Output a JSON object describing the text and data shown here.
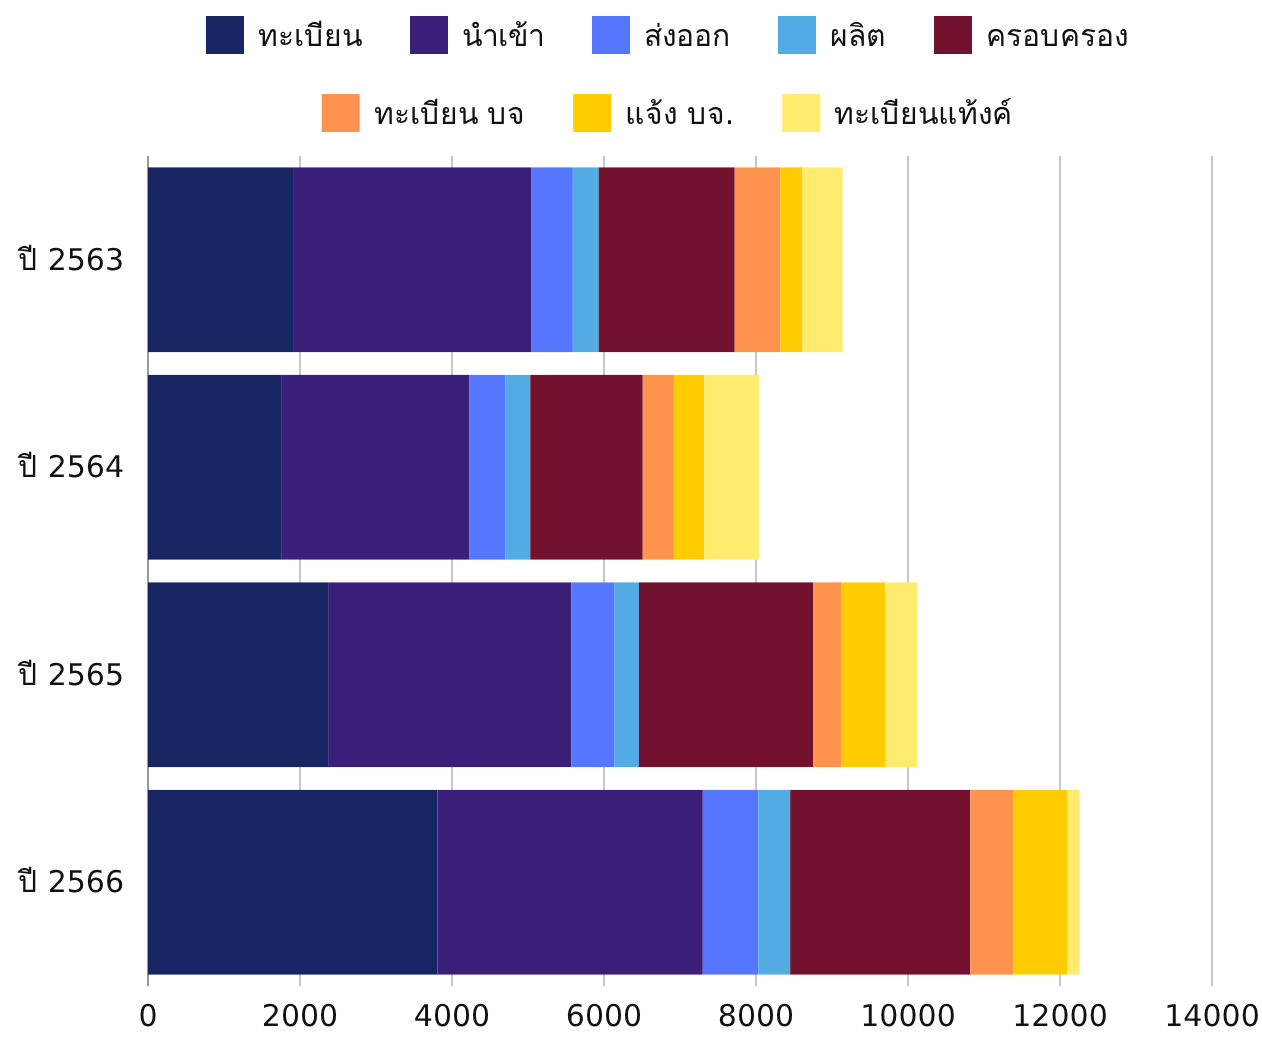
{
  "chart_data": {
    "type": "bar",
    "orientation": "horizontal",
    "stacked": true,
    "grid": "x",
    "legend": "top",
    "categories": [
      "ปี 2563",
      "ปี 2564",
      "ปี 2565",
      "ปี 2566"
    ],
    "xlim": [
      0,
      14000
    ],
    "xticks": [
      0,
      2000,
      4000,
      6000,
      8000,
      10000,
      12000,
      14000
    ],
    "series": [
      {
        "name": "ทะเบียน",
        "color": "#172663",
        "values": [
          1920,
          1760,
          2370,
          3810
        ]
      },
      {
        "name": "นำเข้า",
        "color": "#3b2079",
        "values": [
          3120,
          2470,
          3200,
          3490
        ]
      },
      {
        "name": "ส่งออก",
        "color": "#5576fe",
        "values": [
          550,
          470,
          570,
          730
        ]
      },
      {
        "name": "ผลิต",
        "color": "#52abe2",
        "values": [
          340,
          330,
          320,
          420
        ]
      },
      {
        "name": "ครอบครอง",
        "color": "#72122f",
        "values": [
          1790,
          1480,
          2290,
          2370
        ]
      },
      {
        "name": "ทะเบียน บจ",
        "color": "#ff924d",
        "values": [
          600,
          410,
          370,
          570
        ]
      },
      {
        "name": "แจ้ง บจ.",
        "color": "#ffcc00",
        "values": [
          290,
          400,
          580,
          710
        ]
      },
      {
        "name": "ทะเบียนแท้งค์",
        "color": "#ffec6e",
        "values": [
          530,
          720,
          420,
          160
        ]
      }
    ]
  }
}
